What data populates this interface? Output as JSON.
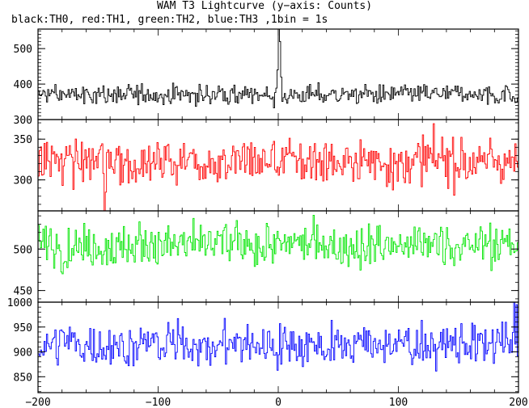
{
  "chart_data": {
    "type": "line",
    "title": "WAM T3 Lightcurve (y−axis: Counts)",
    "subtitle": "black:TH0, red:TH1, green:TH2, blue:TH3 ,1bin = 1s",
    "xlim": [
      -200,
      200
    ],
    "x_ticks": [
      -200,
      -100,
      0,
      100,
      200
    ],
    "x_tick_labels": [
      "−200",
      "−100",
      "0",
      "100",
      "200"
    ],
    "bin_seconds": 1,
    "panels": [
      {
        "name": "TH0",
        "color": "#000000",
        "ylim": [
          300,
          555
        ],
        "y_ticks": [
          300,
          400,
          500
        ],
        "mean": 370,
        "noise": 18,
        "features": [
          {
            "x": 0,
            "y": 555
          },
          {
            "x": 1,
            "y": 520
          },
          {
            "x": -1,
            "y": 440
          },
          {
            "x": 2,
            "y": 420
          }
        ]
      },
      {
        "name": "TH1",
        "color": "#ff0000",
        "ylim": [
          262,
          374
        ],
        "y_ticks": [
          300,
          350
        ],
        "mean": 323,
        "noise": 19,
        "features": [
          {
            "x": -145,
            "y": 262
          },
          {
            "x": -144,
            "y": 285
          }
        ]
      },
      {
        "name": "TH2",
        "color": "#00e600",
        "ylim": [
          436,
          546
        ],
        "y_ticks": [
          450,
          500
        ],
        "mean": 505,
        "noise": 17,
        "features": []
      },
      {
        "name": "TH3",
        "color": "#0000ff",
        "ylim": [
          818,
          1000
        ],
        "y_ticks": [
          850,
          900,
          950,
          1000
        ],
        "mean": 915,
        "noise": 28,
        "features": [
          {
            "x": 196,
            "y": 1000
          },
          {
            "x": 198,
            "y": 995
          }
        ]
      }
    ]
  }
}
